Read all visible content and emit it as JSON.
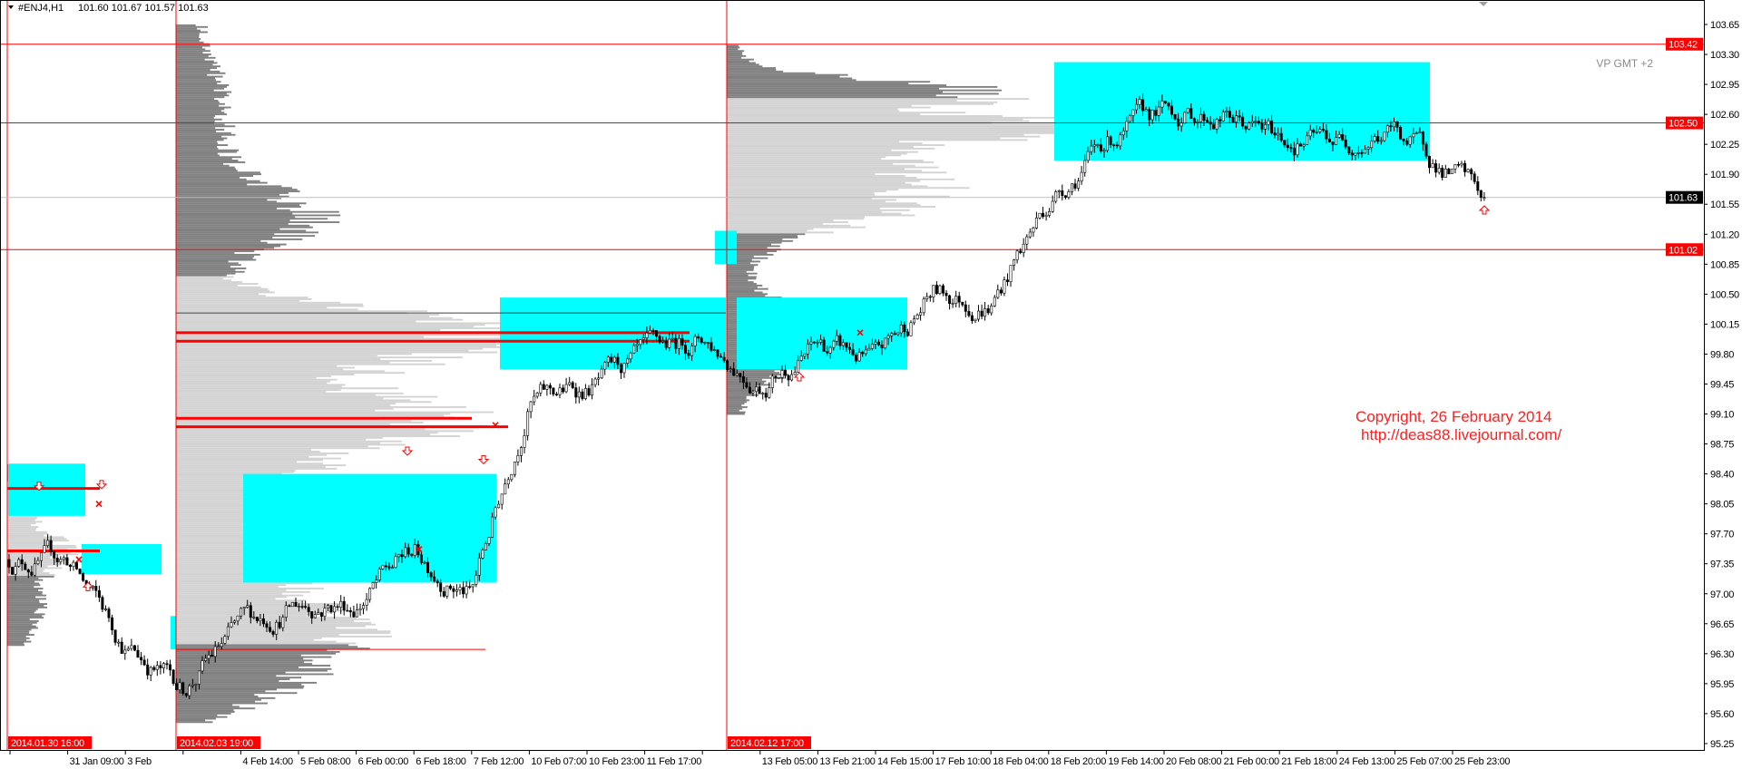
{
  "header": {
    "symbol": "#ENJ4,H1",
    "ohlc": "101.60 101.67 101.57 101.63"
  },
  "annotations": {
    "vp_label": "VP GMT +2",
    "copyright": "Copyright, 26 February 2014",
    "url": "http://deas88.livejournal.com/"
  },
  "colors": {
    "value_area": "#00ffff",
    "profile_dark": "#808080",
    "profile_light": "#d3d3d3",
    "level_line": "#ff0000",
    "marker": "#ff0000",
    "current_price_line": "#c0c0c0"
  },
  "chart_data": {
    "type": "candlestick",
    "symbol": "#ENJ4",
    "timeframe": "H1",
    "y_ticks": [
      "103.65",
      "103.30",
      "102.95",
      "102.60",
      "102.25",
      "101.90",
      "101.55",
      "101.20",
      "100.85",
      "100.50",
      "100.15",
      "99.80",
      "99.45",
      "99.10",
      "98.75",
      "98.40",
      "98.05",
      "97.70",
      "97.35",
      "97.00",
      "96.65",
      "96.30",
      "95.95",
      "95.60",
      "95.25"
    ],
    "ylim": [
      95.25,
      103.65
    ],
    "x_ticks": [
      "2014.01.30 16:00",
      "31 Jan 09:00",
      "3 Feb",
      "2014.02.03 19:00",
      "4 Feb 14:00",
      "5 Feb 08:00",
      "6 Feb 00:00",
      "6 Feb 18:00",
      "7 Feb 12:00",
      "10 Feb 07:00",
      "10 Feb 23:00",
      "11 Feb 17:00",
      "2014.02.12 17:00",
      "13 Feb 05:00",
      "13 Feb 21:00",
      "14 Feb 15:00",
      "17 Feb 10:00",
      "18 Feb 04:00",
      "18 Feb 20:00",
      "19 Feb 14:00",
      "20 Feb 08:00",
      "21 Feb 00:00",
      "21 Feb 18:00",
      "24 Feb 13:00",
      "25 Feb 07:00",
      "25 Feb 23:00"
    ],
    "highlighted_x_ticks": [
      "2014.01.30 16:00",
      "2014.02.03 19:00",
      "2014.02.12 17:00"
    ],
    "approx_price_at_x_ticks": [
      97.4,
      97.4,
      96.4,
      95.9,
      96.6,
      96.9,
      96.9,
      97.5,
      97.0,
      99.3,
      99.4,
      99.7,
      100.0,
      99.5,
      99.9,
      99.7,
      100.5,
      100.4,
      101.6,
      102.3,
      102.6,
      102.6,
      102.3,
      102.3,
      102.4,
      101.9
    ],
    "last_price": 101.63,
    "horizontal_levels": [
      {
        "price": "103.42",
        "color": "#ff0000"
      },
      {
        "price": "102.50",
        "color": "#ff0000"
      },
      {
        "price": "101.02",
        "color": "#ff0000"
      }
    ],
    "current_price": {
      "price": "101.63",
      "color": "#000000"
    },
    "volume_profiles": [
      {
        "start": "2014.01.30 16:00",
        "range": [
          96.4,
          98.5
        ],
        "poc_lines": [
          98.23,
          97.5
        ],
        "value_area": [
          [
            97.91,
            98.52
          ],
          [
            97.23,
            97.58
          ]
        ]
      },
      {
        "start": "2014.02.03 19:00",
        "range": [
          95.5,
          103.65
        ],
        "poc_lines": [
          100.05,
          99.95,
          99.05,
          98.95
        ],
        "value_area": [
          [
            96.35,
            96.74
          ],
          [
            97.13,
            98.4
          ],
          [
            99.62,
            100.46
          ]
        ]
      },
      {
        "start": "2014.02.12 17:00",
        "range": [
          99.1,
          103.4
        ],
        "poc_lines": [
          102.5
        ],
        "value_area": [
          [
            100.85,
            101.24
          ],
          [
            99.62,
            100.46
          ],
          [
            102.06,
            103.21
          ]
        ]
      }
    ]
  }
}
